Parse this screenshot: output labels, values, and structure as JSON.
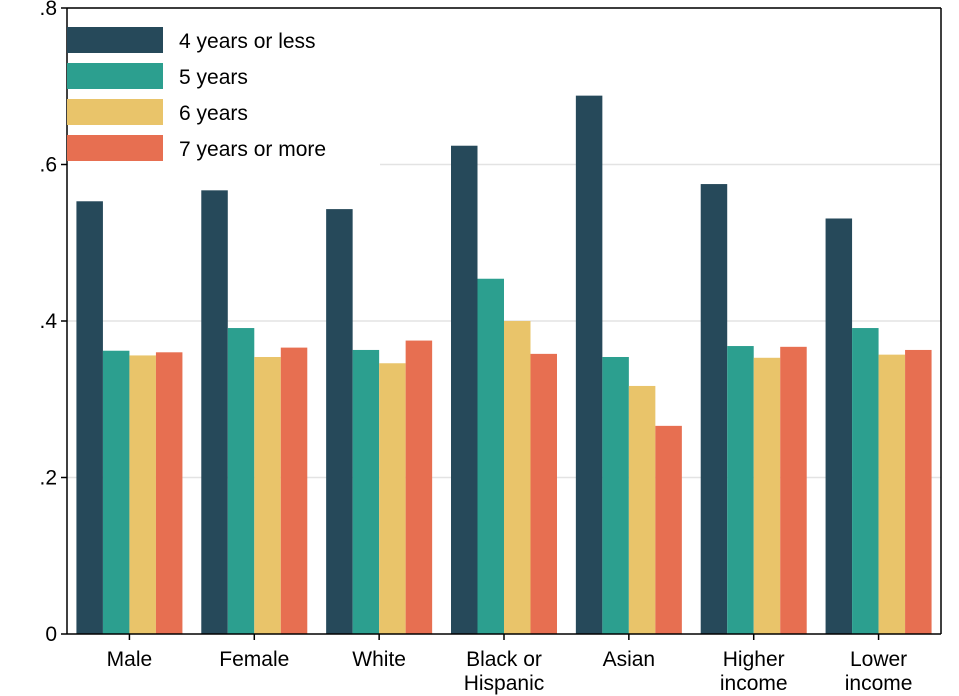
{
  "chart_data": {
    "type": "bar",
    "title": "",
    "xlabel": "",
    "ylabel": "",
    "ylim": [
      0,
      0.8
    ],
    "yticks": [
      {
        "value": 0,
        "label": "0"
      },
      {
        "value": 0.2,
        "label": ".2"
      },
      {
        "value": 0.4,
        "label": ".4"
      },
      {
        "value": 0.6,
        "label": ".6"
      },
      {
        "value": 0.8,
        "label": ".8"
      }
    ],
    "grid": true,
    "legend_position": "top-left",
    "categories": [
      [
        "Male"
      ],
      [
        "Female"
      ],
      [
        "White"
      ],
      [
        "Black or",
        "Hispanic"
      ],
      [
        "Asian"
      ],
      [
        "Higher",
        "income"
      ],
      [
        "Lower",
        "income"
      ]
    ],
    "series": [
      {
        "name": "4 years or less",
        "color": "#26495a",
        "values": [
          0.553,
          0.567,
          0.543,
          0.624,
          0.688,
          0.575,
          0.531
        ]
      },
      {
        "name": "5 years",
        "color": "#2c9f8f",
        "values": [
          0.362,
          0.391,
          0.363,
          0.454,
          0.354,
          0.368,
          0.391
        ]
      },
      {
        "name": "6 years",
        "color": "#e9c46a",
        "values": [
          0.356,
          0.354,
          0.346,
          0.4,
          0.317,
          0.353,
          0.357
        ]
      },
      {
        "name": "7 years or more",
        "color": "#e76f51",
        "values": [
          0.36,
          0.366,
          0.375,
          0.358,
          0.266,
          0.367,
          0.363
        ]
      }
    ]
  }
}
